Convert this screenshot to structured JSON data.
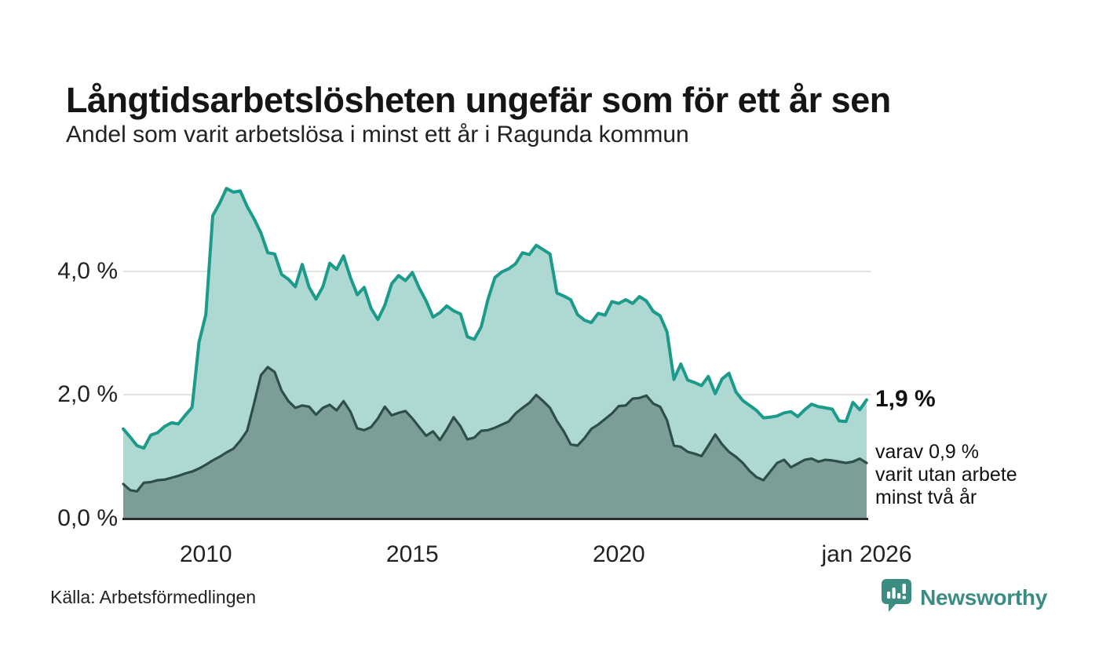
{
  "header": {
    "title": "Långtidsarbetslösheten ungefär som för ett år sen",
    "subtitle": "Andel som varit arbetslösa i minst ett år i Ragunda kommun"
  },
  "chart_data": {
    "type": "area",
    "title": "Långtidsarbetslösheten ungefär som för ett år sen",
    "subtitle": "Andel som varit arbetslösa i minst ett år i Ragunda kommun",
    "unit": "%",
    "x_range": {
      "start": "2008-01",
      "end": "2026-01",
      "points_every_months": 2
    },
    "ylim": [
      0,
      5.55
    ],
    "grid": "horizontal",
    "y_axis": {
      "ticks": [
        {
          "value": 4.0,
          "label": "4,0 %"
        },
        {
          "value": 2.0,
          "label": "2,0 %"
        },
        {
          "value": 0.0,
          "label": "0,0 %"
        }
      ]
    },
    "x_axis": {
      "ticks": [
        {
          "year": 2010,
          "label": "2010"
        },
        {
          "year": 2015,
          "label": "2015"
        },
        {
          "year": 2020,
          "label": "2020"
        },
        {
          "year": 2026,
          "label": "jan 2026"
        }
      ]
    },
    "series": [
      {
        "name": "Andel arbetslösa minst ett år",
        "line_color": "#1c9a8a",
        "fill_color": "#aed8d2",
        "line_width": 4,
        "latest_value_label": "1,9 %",
        "values": [
          1.45,
          1.32,
          1.18,
          1.14,
          1.35,
          1.39,
          1.49,
          1.55,
          1.53,
          1.67,
          1.8,
          2.85,
          3.3,
          4.9,
          5.1,
          5.34,
          5.28,
          5.3,
          5.05,
          4.85,
          4.62,
          4.3,
          4.28,
          3.95,
          3.87,
          3.75,
          4.11,
          3.74,
          3.55,
          3.75,
          4.13,
          4.03,
          4.25,
          3.9,
          3.62,
          3.74,
          3.4,
          3.22,
          3.45,
          3.8,
          3.93,
          3.85,
          3.98,
          3.73,
          3.52,
          3.26,
          3.33,
          3.44,
          3.36,
          3.31,
          2.94,
          2.9,
          3.1,
          3.55,
          3.9,
          3.99,
          4.04,
          4.12,
          4.3,
          4.27,
          4.42,
          4.35,
          4.28,
          3.65,
          3.6,
          3.54,
          3.3,
          3.21,
          3.17,
          3.32,
          3.29,
          3.51,
          3.48,
          3.54,
          3.48,
          3.59,
          3.52,
          3.35,
          3.28,
          3.02,
          2.25,
          2.5,
          2.24,
          2.2,
          2.15,
          2.3,
          2.02,
          2.26,
          2.35,
          2.05,
          1.91,
          1.83,
          1.75,
          1.63,
          1.64,
          1.66,
          1.71,
          1.73,
          1.65,
          1.76,
          1.85,
          1.81,
          1.79,
          1.77,
          1.58,
          1.57,
          1.88,
          1.76,
          1.92
        ]
      },
      {
        "name": "Andel arbetslösa minst två år",
        "line_color": "#2e4e49",
        "fill_color": "#7d9e98",
        "line_width": 3.2,
        "latest_value_label": "0,9 %",
        "values": [
          0.56,
          0.46,
          0.44,
          0.58,
          0.59,
          0.62,
          0.63,
          0.66,
          0.69,
          0.73,
          0.76,
          0.81,
          0.87,
          0.94,
          1.0,
          1.07,
          1.13,
          1.26,
          1.42,
          1.86,
          2.32,
          2.45,
          2.37,
          2.07,
          1.9,
          1.79,
          1.83,
          1.81,
          1.68,
          1.79,
          1.84,
          1.75,
          1.9,
          1.73,
          1.46,
          1.43,
          1.48,
          1.62,
          1.81,
          1.67,
          1.71,
          1.74,
          1.62,
          1.48,
          1.34,
          1.41,
          1.27,
          1.44,
          1.64,
          1.49,
          1.28,
          1.31,
          1.42,
          1.43,
          1.47,
          1.52,
          1.57,
          1.7,
          1.79,
          1.87,
          2.0,
          1.9,
          1.79,
          1.58,
          1.41,
          1.2,
          1.18,
          1.3,
          1.45,
          1.52,
          1.61,
          1.7,
          1.82,
          1.83,
          1.94,
          1.95,
          1.99,
          1.86,
          1.81,
          1.59,
          1.18,
          1.16,
          1.08,
          1.05,
          1.01,
          1.18,
          1.36,
          1.2,
          1.08,
          1.0,
          0.9,
          0.77,
          0.67,
          0.62,
          0.76,
          0.9,
          0.95,
          0.83,
          0.89,
          0.95,
          0.97,
          0.92,
          0.95,
          0.94,
          0.92,
          0.9,
          0.92,
          0.97,
          0.9
        ]
      }
    ],
    "annotation": {
      "headline": "1,9 %",
      "lines": [
        "varav 0,9 %",
        "varit utan arbete",
        "minst två år"
      ]
    },
    "legend_position": "none"
  },
  "footer": {
    "source": "Källa: Arbetsförmedlingen",
    "brand": "Newsworthy",
    "brand_color": "#3b8d84",
    "logo_icon": "speech-bubble-bar-chart-icon"
  }
}
